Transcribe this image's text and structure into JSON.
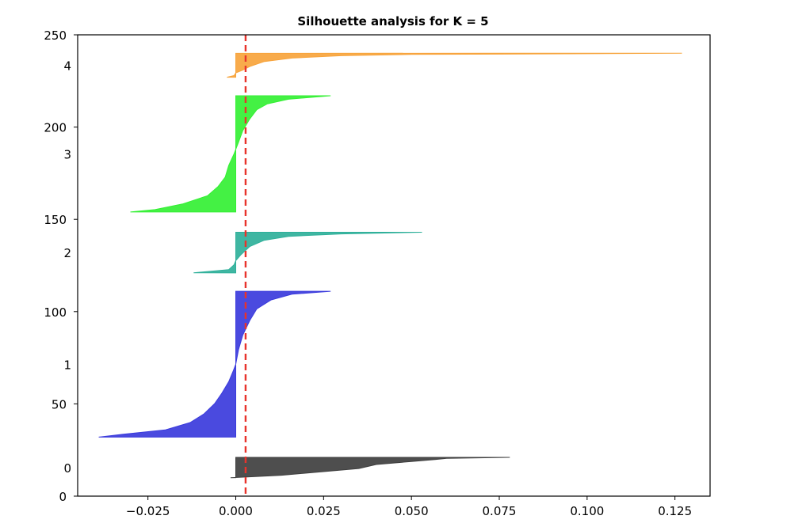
{
  "chart_data": {
    "type": "area",
    "title": "Silhouette analysis for K = 5",
    "xlabel": "",
    "ylabel": "",
    "xlim": [
      -0.045,
      0.135
    ],
    "ylim": [
      0,
      250
    ],
    "xticks": [
      -0.025,
      0.0,
      0.025,
      0.05,
      0.075,
      0.1,
      0.125
    ],
    "xtick_labels": [
      "−0.025",
      "0.000",
      "0.025",
      "0.050",
      "0.075",
      "0.100",
      "0.125"
    ],
    "yticks": [
      0,
      50,
      100,
      150,
      200,
      250
    ],
    "ytick_labels": [
      "0",
      "50",
      "100",
      "150",
      "200",
      "250"
    ],
    "average_silhouette": 0.0028,
    "average_line_color": "#e8332c",
    "clusters": [
      {
        "label": "0",
        "color": "#3f3f3f",
        "y_lower": 10,
        "y_upper": 21,
        "profile": [
          [
            0,
            0.078
          ],
          [
            0.05,
            0.06
          ],
          [
            0.1,
            0.057
          ],
          [
            0.2,
            0.05
          ],
          [
            0.35,
            0.04
          ],
          [
            0.55,
            0.035
          ],
          [
            0.7,
            0.025
          ],
          [
            0.88,
            0.013
          ],
          [
            0.95,
            0.005
          ],
          [
            1,
            -0.0015
          ]
        ]
      },
      {
        "label": "1",
        "color": "#3b3bdc",
        "y_lower": 32,
        "y_upper": 111,
        "profile": [
          [
            0,
            0.027
          ],
          [
            0.02,
            0.016
          ],
          [
            0.06,
            0.01
          ],
          [
            0.12,
            0.006
          ],
          [
            0.2,
            0.004
          ],
          [
            0.3,
            0.002
          ],
          [
            0.4,
            0.0008
          ],
          [
            0.5,
            0.0
          ],
          [
            0.55,
            -0.0008
          ],
          [
            0.62,
            -0.002
          ],
          [
            0.7,
            -0.004
          ],
          [
            0.77,
            -0.006
          ],
          [
            0.84,
            -0.009
          ],
          [
            0.9,
            -0.013
          ],
          [
            0.95,
            -0.02
          ],
          [
            0.98,
            -0.032
          ],
          [
            1,
            -0.039
          ]
        ]
      },
      {
        "label": "2",
        "color": "#2fb09a",
        "y_lower": 121,
        "y_upper": 143,
        "profile": [
          [
            0,
            0.053
          ],
          [
            0.04,
            0.03
          ],
          [
            0.1,
            0.015
          ],
          [
            0.2,
            0.008
          ],
          [
            0.35,
            0.004
          ],
          [
            0.55,
            0.0015
          ],
          [
            0.7,
            0.0
          ],
          [
            0.8,
            -0.0005
          ],
          [
            0.92,
            -0.002
          ],
          [
            1,
            -0.012
          ]
        ]
      },
      {
        "label": "3",
        "color": "#34f034",
        "y_lower": 154,
        "y_upper": 217,
        "profile": [
          [
            0,
            0.027
          ],
          [
            0.03,
            0.015
          ],
          [
            0.07,
            0.009
          ],
          [
            0.12,
            0.006
          ],
          [
            0.2,
            0.004
          ],
          [
            0.3,
            0.002
          ],
          [
            0.4,
            0.0008
          ],
          [
            0.5,
            -0.0005
          ],
          [
            0.6,
            -0.002
          ],
          [
            0.7,
            -0.003
          ],
          [
            0.78,
            -0.005
          ],
          [
            0.86,
            -0.008
          ],
          [
            0.93,
            -0.015
          ],
          [
            0.98,
            -0.023
          ],
          [
            1,
            -0.03
          ]
        ]
      },
      {
        "label": "4",
        "color": "#f7a43c",
        "y_lower": 227,
        "y_upper": 240,
        "profile": [
          [
            0,
            0.127
          ],
          [
            0.02,
            0.1
          ],
          [
            0.05,
            0.05
          ],
          [
            0.1,
            0.03
          ],
          [
            0.2,
            0.016
          ],
          [
            0.35,
            0.008
          ],
          [
            0.55,
            0.004
          ],
          [
            0.7,
            0.002
          ],
          [
            0.82,
            0.0
          ],
          [
            0.93,
            -0.0005
          ],
          [
            1,
            -0.0025
          ]
        ]
      }
    ]
  }
}
